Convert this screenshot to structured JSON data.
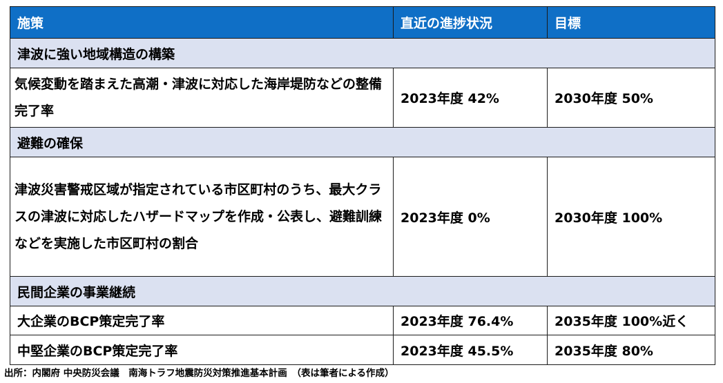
{
  "header": {
    "measure": "施策",
    "recent_progress": "直近の進捗状況",
    "target": "目標"
  },
  "sections": [
    {
      "title": "津波に強い地域構造の構築",
      "rows": [
        {
          "item": " 気候変動を踏まえた高潮・津波に対応した海岸堤防などの整備完了率",
          "progress": "2023年度 42%",
          "target": "2030年度 50%"
        }
      ]
    },
    {
      "title": "避難の確保",
      "rows": [
        {
          "item": " 津波災害警戒区域が指定されている市区町村のうち、最大クラスの津波に対応したハザードマップを作成・公表し、避難訓練などを実施した市区町村の割合",
          "progress": "2023年度 0%",
          "target": "2030年度 100%"
        }
      ]
    },
    {
      "title": "民間企業の事業継続",
      "rows": [
        {
          "item": "大企業のBCP策定完了率",
          "progress": "2023年度 76.4%",
          "target": "2035年度 100%近く"
        },
        {
          "item": "中堅企業のBCP策定完了率",
          "progress": "2023年度 45.5%",
          "target": "2035年度 80%"
        }
      ]
    }
  ],
  "footer": "出所：内閣府 中央防災会議　南海トラフ地震防災対策推進基本計画　（表は筆者による作成）",
  "colors": {
    "header_bg": "#0f6fc6",
    "section_bg": "#dbe1f1"
  }
}
